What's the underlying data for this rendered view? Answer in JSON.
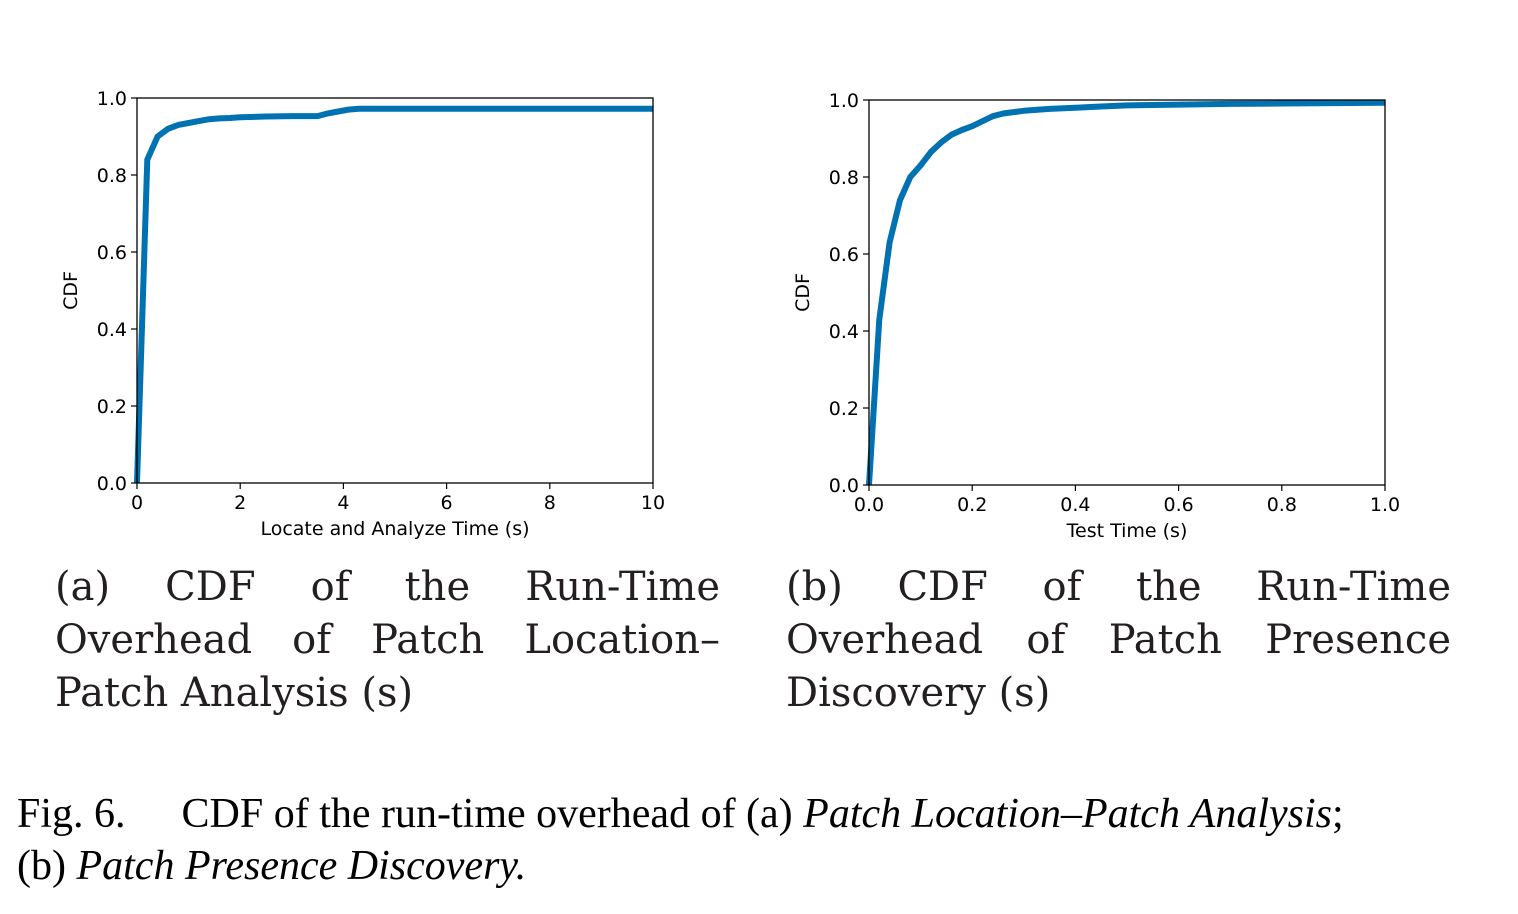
{
  "colors": {
    "line": "#0072b2",
    "axis": "#000000",
    "text": "#231f20"
  },
  "subfigures": [
    {
      "caption": "(a) CDF of the Run-Time Overhead of Patch Location–Patch Analysis (s)",
      "caption_html": "(a) CDF of the Run-Time Over-<wbr>head of Patch Location–Patch Analysis (s)"
    },
    {
      "caption": "(b) CDF of the Run-Time Overhead of Patch Presence Discovery (s)"
    }
  ],
  "figure_caption": {
    "label": "Fig. 6.",
    "text_1": "CDF of the run-time overhead of (a) ",
    "italic_1": "Patch Location–Patch Analysis",
    "text_2": ";",
    "text_3": "(b) ",
    "italic_2": "Patch Presence Discovery."
  },
  "chart_data": [
    {
      "type": "line",
      "xlabel": "Locate and Analyze Time (s)",
      "ylabel": "CDF",
      "xlim": [
        0,
        10
      ],
      "ylim": [
        0,
        1.0
      ],
      "xticks": [
        "0",
        "2",
        "4",
        "6",
        "8",
        "10"
      ],
      "yticks": [
        "0.0",
        "0.2",
        "0.4",
        "0.6",
        "0.8",
        "1.0"
      ],
      "grid": false,
      "series": [
        {
          "x": [
            0,
            0.2,
            0.4,
            0.6,
            0.8,
            1.0,
            1.2,
            1.4,
            1.6,
            1.8,
            2.0,
            2.5,
            3.0,
            3.5,
            3.7,
            3.9,
            4.1,
            4.3,
            5,
            6,
            7,
            8,
            9,
            10
          ],
          "y": [
            0,
            0.84,
            0.9,
            0.92,
            0.93,
            0.935,
            0.94,
            0.945,
            0.947,
            0.948,
            0.95,
            0.952,
            0.953,
            0.953,
            0.96,
            0.965,
            0.97,
            0.972,
            0.972,
            0.972,
            0.972,
            0.972,
            0.972,
            0.972
          ]
        }
      ]
    },
    {
      "type": "line",
      "xlabel": "Test Time (s)",
      "ylabel": "CDF",
      "xlim": [
        0,
        1.0
      ],
      "ylim": [
        0,
        1.0
      ],
      "xticks": [
        "0.0",
        "0.2",
        "0.4",
        "0.6",
        "0.8",
        "1.0"
      ],
      "yticks": [
        "0.0",
        "0.2",
        "0.4",
        "0.6",
        "0.8",
        "1.0"
      ],
      "grid": false,
      "series": [
        {
          "x": [
            0,
            0.02,
            0.04,
            0.06,
            0.08,
            0.1,
            0.12,
            0.14,
            0.16,
            0.18,
            0.2,
            0.22,
            0.24,
            0.26,
            0.3,
            0.35,
            0.4,
            0.45,
            0.5,
            0.6,
            0.7,
            0.8,
            0.9,
            1.0
          ],
          "y": [
            0,
            0.43,
            0.63,
            0.74,
            0.8,
            0.83,
            0.865,
            0.89,
            0.91,
            0.922,
            0.932,
            0.945,
            0.958,
            0.965,
            0.972,
            0.977,
            0.98,
            0.983,
            0.986,
            0.988,
            0.99,
            0.991,
            0.992,
            0.993
          ]
        }
      ]
    }
  ]
}
